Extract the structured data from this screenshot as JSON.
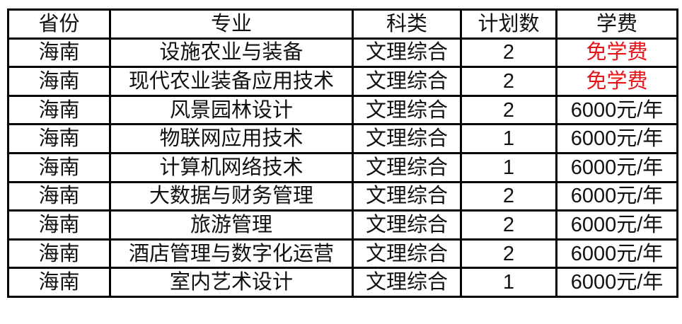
{
  "headers": [
    "省份",
    "专业",
    "科类",
    "计划数",
    "学费"
  ],
  "rows": [
    [
      "海南",
      "设施农业与装备",
      "文理综合",
      "2",
      "免学费"
    ],
    [
      "海南",
      "现代农业装备应用技术",
      "文理综合",
      "2",
      "免学费"
    ],
    [
      "海南",
      "风景园林设计",
      "文理综合",
      "2",
      "6000元/年"
    ],
    [
      "海南",
      "物联网应用技术",
      "文理综合",
      "1",
      "6000元/年"
    ],
    [
      "海南",
      "计算机网络技术",
      "文理综合",
      "1",
      "6000元/年"
    ],
    [
      "海南",
      "大数据与财务管理",
      "文理综合",
      "2",
      "6000元/年"
    ],
    [
      "海南",
      "旅游管理",
      "文理综合",
      "2",
      "6000元/年"
    ],
    [
      "海南",
      "酒店管理与数字化运营",
      "文理综合",
      "2",
      "6000元/年"
    ],
    [
      "海南",
      "室内艺术设计",
      "文理综合",
      "1",
      "6000元/年"
    ]
  ],
  "colors": {
    "free_tuition": "#e8141a",
    "text": "#111111",
    "border": "#000000"
  }
}
